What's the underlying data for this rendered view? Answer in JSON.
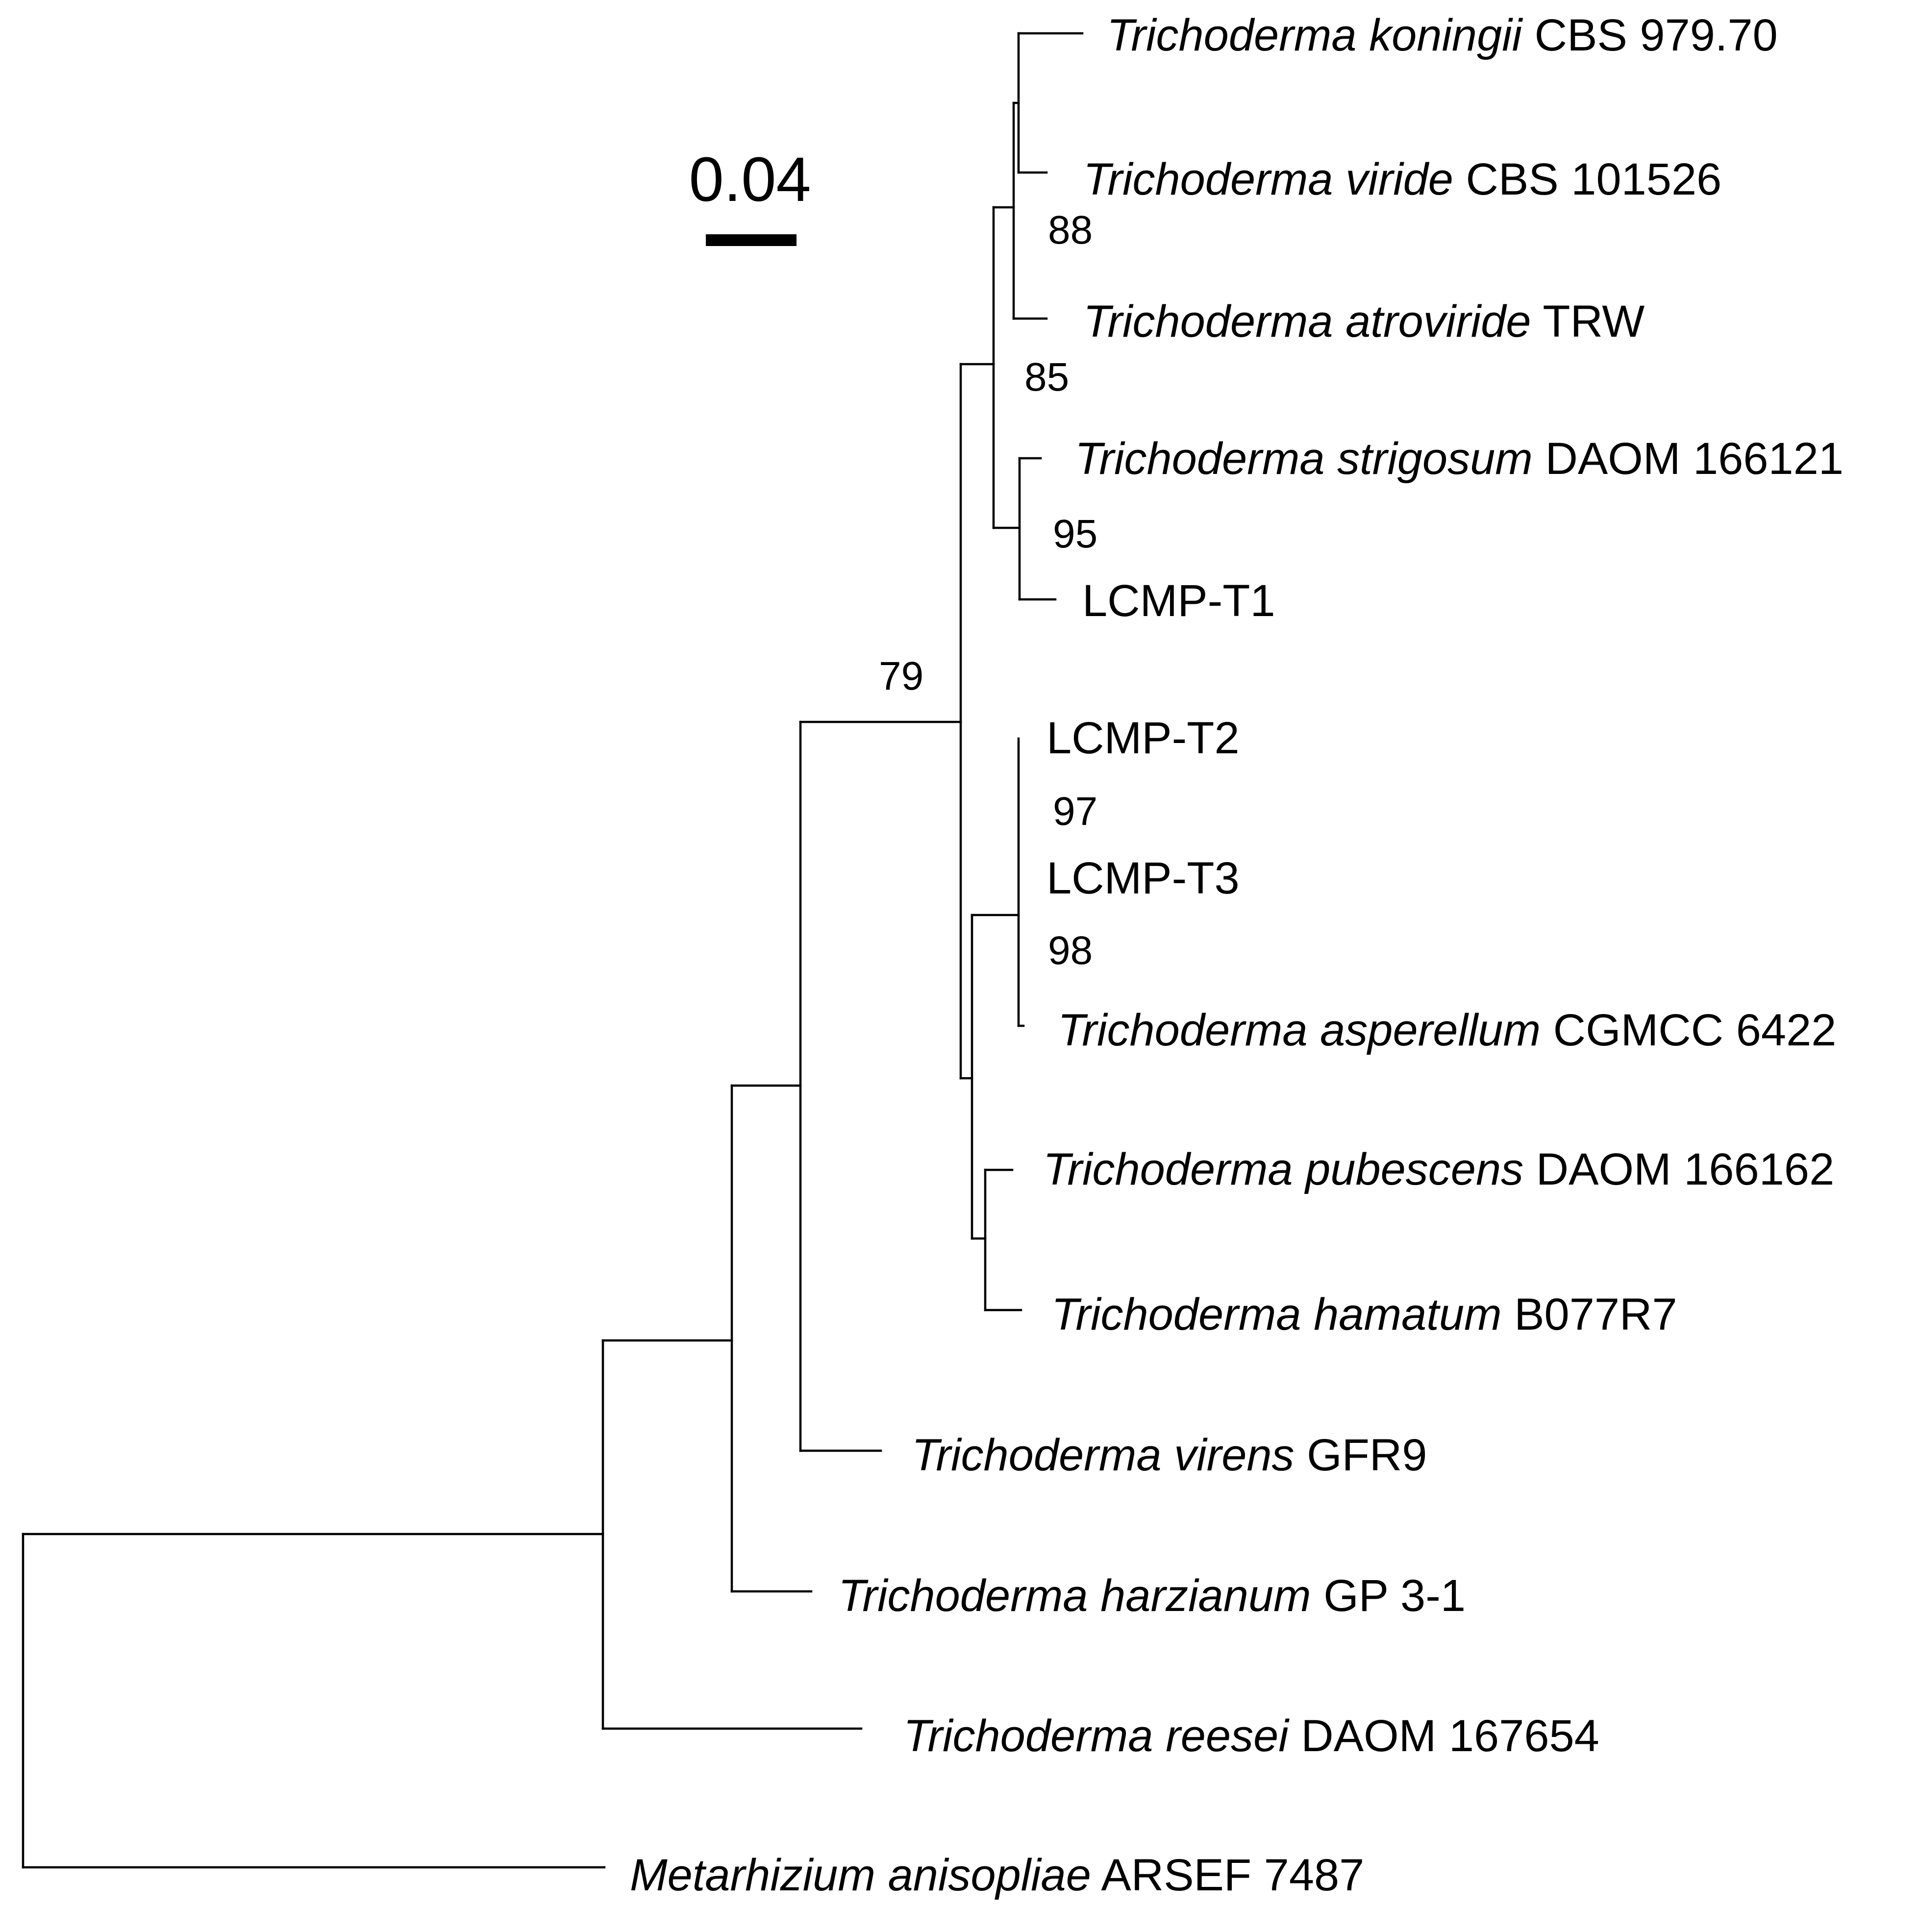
{
  "figure": {
    "type": "phylogenetic-tree",
    "scale_bar": {
      "label": "0.04"
    },
    "taxa": [
      {
        "id": "koningii",
        "genus": "Trichoderma",
        "species": "koningii",
        "strain": "CBS 979.70"
      },
      {
        "id": "viride",
        "genus": "Trichoderma",
        "species": "viride",
        "strain": "CBS 101526"
      },
      {
        "id": "atroviride",
        "genus": "Trichoderma",
        "species": "atroviride",
        "strain": "TRW"
      },
      {
        "id": "strigosum",
        "genus": "Trichoderma",
        "species": "strigosum",
        "strain": "DAOM 166121"
      },
      {
        "id": "lcmp_t1",
        "plain": "LCMP-T1"
      },
      {
        "id": "lcmp_t2",
        "plain": "LCMP-T2"
      },
      {
        "id": "lcmp_t3",
        "plain": "LCMP-T3"
      },
      {
        "id": "asperellum",
        "genus": "Trichoderma",
        "species": "asperellum",
        "strain": "CGMCC 6422"
      },
      {
        "id": "pubescens",
        "genus": "Trichoderma",
        "species": "pubescens",
        "strain": "DAOM 166162"
      },
      {
        "id": "hamatum",
        "genus": "Trichoderma",
        "species": "hamatum",
        "strain": "B077R7"
      },
      {
        "id": "virens",
        "genus": "Trichoderma",
        "species": "virens",
        "strain": "GFR9"
      },
      {
        "id": "harzianum",
        "genus": "Trichoderma",
        "species": "harzianum",
        "strain": "GP 3-1"
      },
      {
        "id": "reesei",
        "genus": "Trichoderma",
        "species": "reesei",
        "strain": "DAOM 167654"
      },
      {
        "id": "anisopliae",
        "genus": "Metarhizium",
        "species": "anisopliae",
        "strain": "ARSEF 7487"
      }
    ],
    "bootstrap_values": [
      {
        "id": "bs88",
        "value": "88"
      },
      {
        "id": "bs85",
        "value": "85"
      },
      {
        "id": "bs95",
        "value": "95"
      },
      {
        "id": "bs79",
        "value": "79"
      },
      {
        "id": "bs97",
        "value": "97"
      },
      {
        "id": "bs98",
        "value": "98"
      }
    ]
  }
}
